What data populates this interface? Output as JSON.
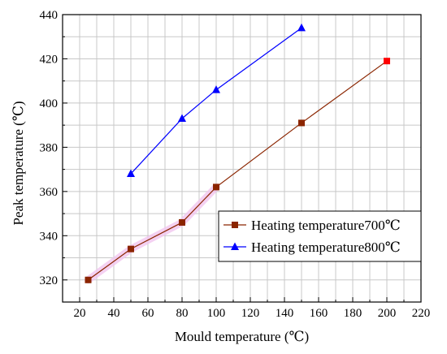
{
  "chart_data": {
    "type": "line",
    "xlabel": "Mould temperature (℃)",
    "ylabel": "Peak temperature (℃)",
    "xlim": [
      10,
      220
    ],
    "ylim": [
      310,
      440
    ],
    "xticks": [
      20,
      40,
      60,
      80,
      100,
      120,
      140,
      160,
      180,
      200,
      220
    ],
    "yticks": [
      320,
      340,
      360,
      380,
      400,
      420,
      440
    ],
    "grid": true,
    "legend_position": "right-middle",
    "series": [
      {
        "name": "Heating temperature700℃",
        "marker": "square",
        "color": "#8B2500",
        "x": [
          25,
          50,
          80,
          100,
          150,
          200
        ],
        "y": [
          320,
          334,
          346,
          362,
          391,
          419
        ]
      },
      {
        "name": "Heating temperature800℃",
        "marker": "triangle",
        "color": "#0000ff",
        "x": [
          50,
          80,
          100,
          150
        ],
        "y": [
          368,
          393,
          406,
          434
        ]
      }
    ]
  },
  "colors": {
    "last_point_square": "#ff0000",
    "grid": "#c8c8c8",
    "highlight": "#f2c6f0"
  }
}
